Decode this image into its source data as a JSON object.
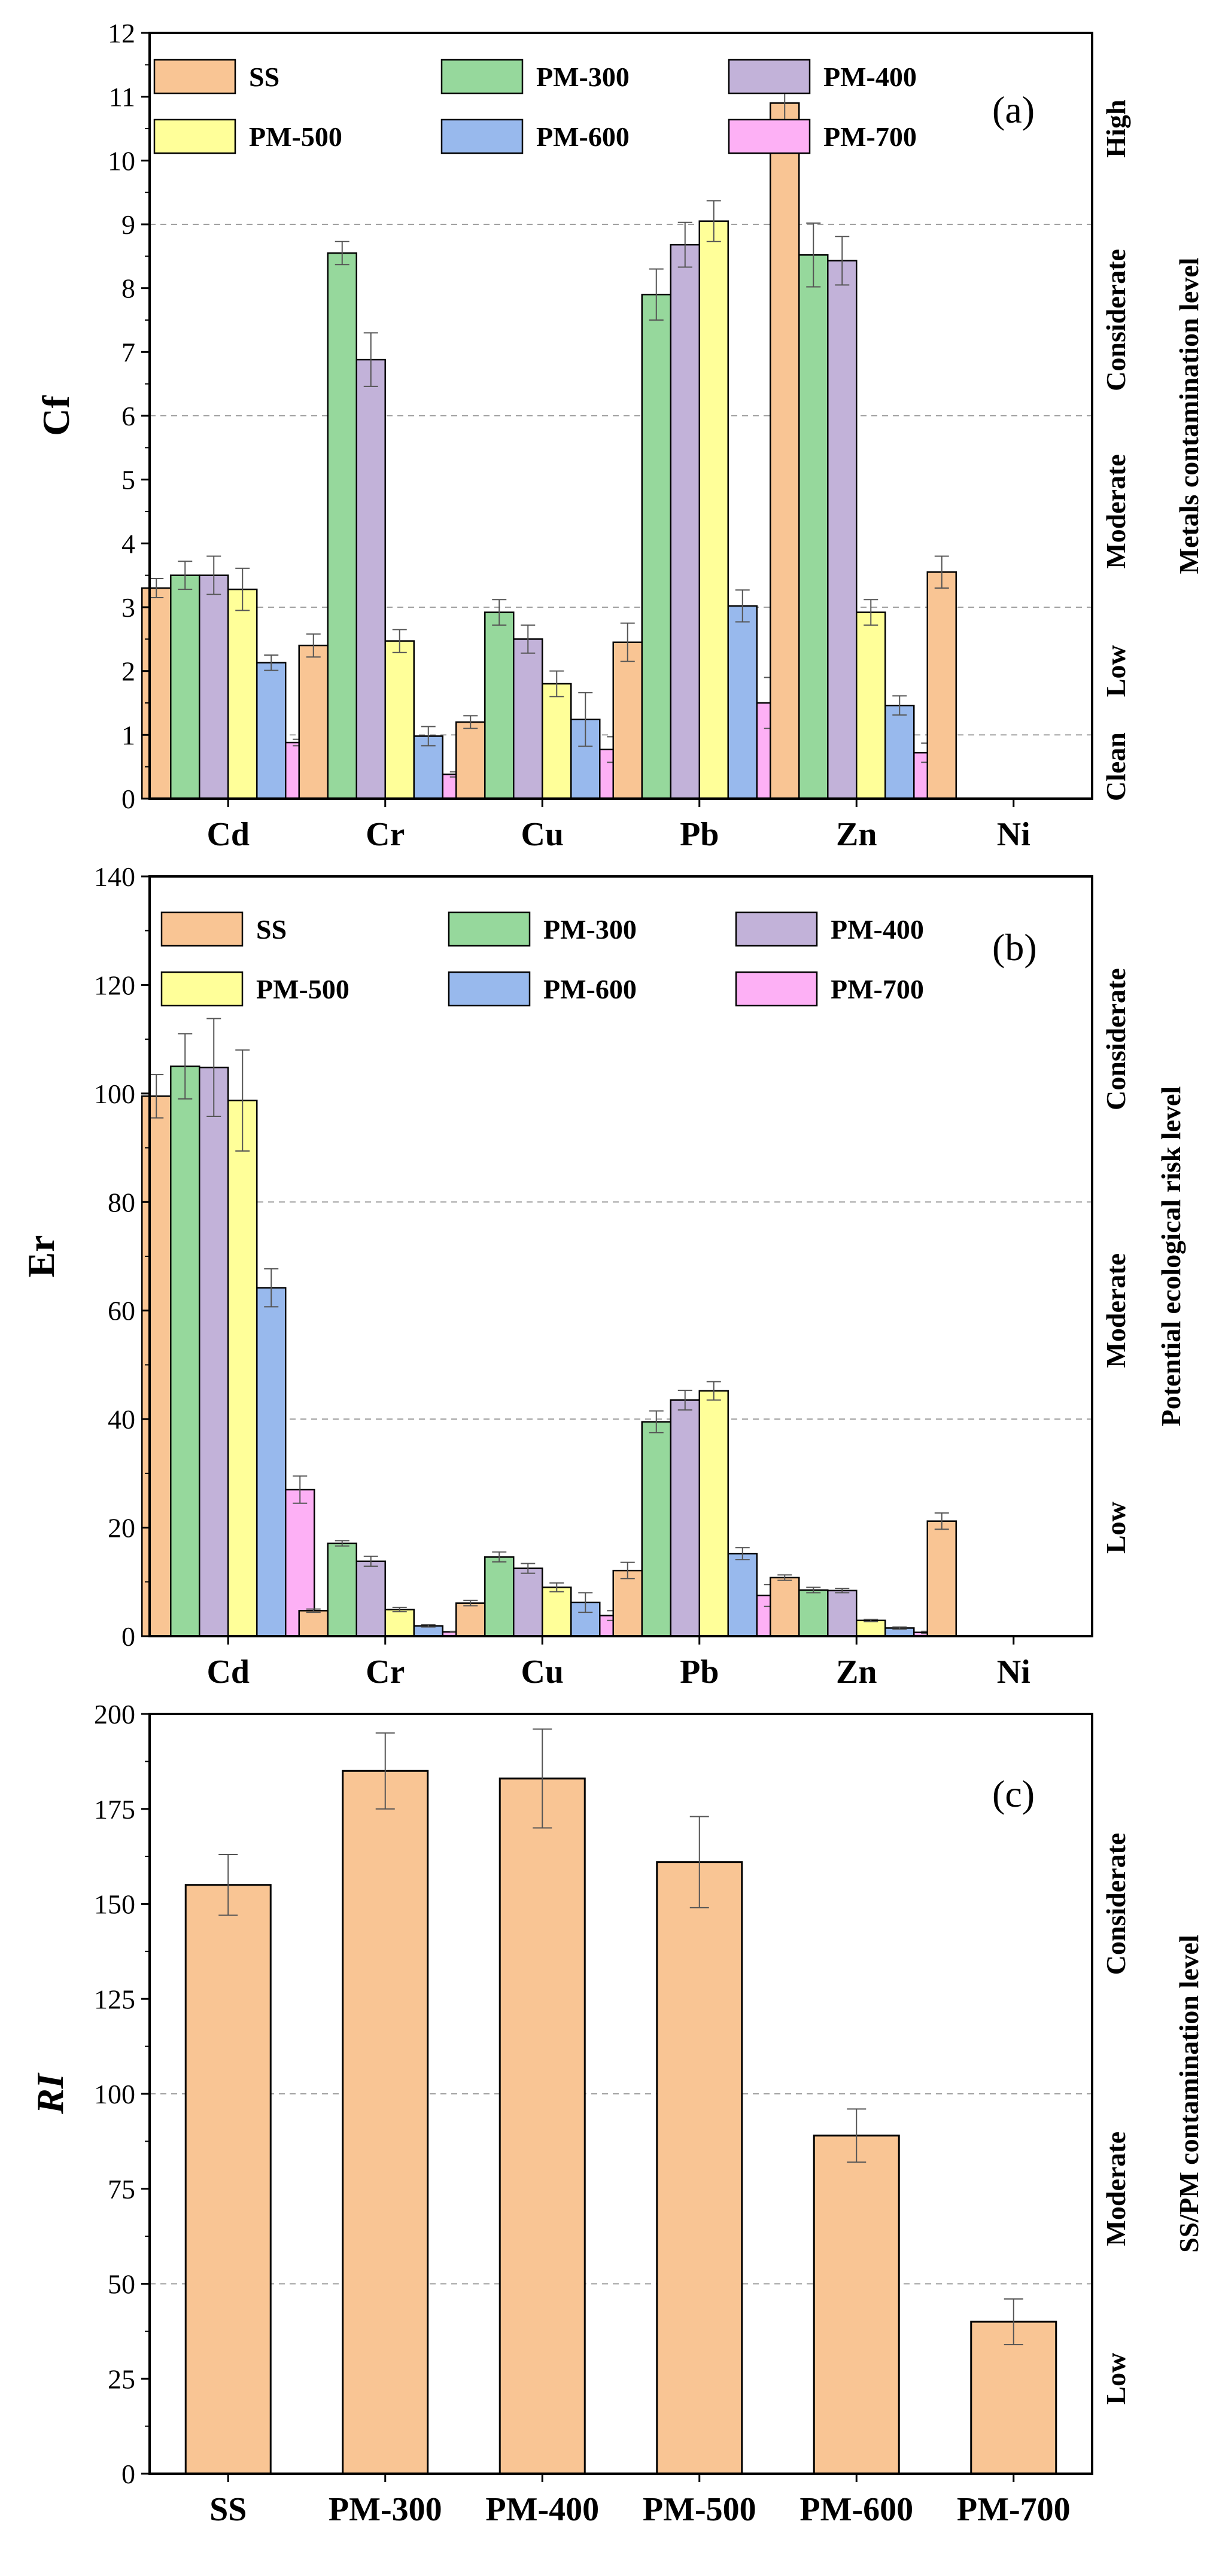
{
  "colors": {
    "SS": "#F9C594",
    "PM-300": "#96D89C",
    "PM-400": "#C2B2D9",
    "PM-500": "#FFFF99",
    "PM-600": "#98B9ED",
    "PM-700": "#FDB0F5",
    "grid": "#A0A0A0",
    "error": "#555555"
  },
  "chart_data": [
    {
      "id": "a",
      "type": "bar",
      "panel_label": "(a)",
      "ylabel": "Cf",
      "right_label": "Metals contamination level",
      "ylim": [
        0,
        12
      ],
      "yticks": [
        "0",
        "1",
        "2",
        "3",
        "4",
        "5",
        "6",
        "7",
        "8",
        "9",
        "10",
        "11",
        "12"
      ],
      "grid_lines": [
        1,
        3,
        6,
        9
      ],
      "categories": [
        "Cd",
        "Cr",
        "Cu",
        "Pb",
        "Zn",
        "Ni"
      ],
      "legend": [
        "SS",
        "PM-300",
        "PM-400",
        "PM-500",
        "PM-600",
        "PM-700"
      ],
      "levels": [
        {
          "label": "Clean",
          "from": 0,
          "to": 1
        },
        {
          "label": "Low",
          "from": 1,
          "to": 3
        },
        {
          "label": "Moderate",
          "from": 3,
          "to": 6
        },
        {
          "label": "Considerate",
          "from": 6,
          "to": 9
        },
        {
          "label": "High",
          "from": 9,
          "to": 12
        }
      ],
      "series": [
        {
          "name": "SS",
          "values": [
            3.3,
            2.4,
            1.2,
            2.45,
            10.9,
            3.55
          ],
          "errors": [
            0.15,
            0.18,
            0.1,
            0.3,
            0.3,
            0.25
          ]
        },
        {
          "name": "PM-300",
          "values": [
            3.5,
            8.55,
            2.92,
            7.9,
            8.52,
            0
          ],
          "errors": [
            0.22,
            0.18,
            0.2,
            0.4,
            0.5,
            0
          ]
        },
        {
          "name": "PM-400",
          "values": [
            3.5,
            6.88,
            2.5,
            8.68,
            8.43,
            0
          ],
          "errors": [
            0.3,
            0.42,
            0.22,
            0.35,
            0.38,
            0
          ]
        },
        {
          "name": "PM-500",
          "values": [
            3.28,
            2.47,
            1.8,
            9.05,
            2.92,
            0
          ],
          "errors": [
            0.33,
            0.18,
            0.2,
            0.32,
            0.2,
            0
          ]
        },
        {
          "name": "PM-600",
          "values": [
            2.13,
            0.98,
            1.24,
            3.02,
            1.46,
            0
          ],
          "errors": [
            0.12,
            0.15,
            0.42,
            0.25,
            0.15,
            0
          ]
        },
        {
          "name": "PM-700",
          "values": [
            0.88,
            0.38,
            0.77,
            1.5,
            0.72,
            0
          ],
          "errors": [
            0.05,
            0.04,
            0.2,
            0.4,
            0.15,
            0
          ]
        }
      ]
    },
    {
      "id": "b",
      "type": "bar",
      "panel_label": "(b)",
      "ylabel": "Er",
      "right_label": "Potential ecological risk level",
      "ylim": [
        0,
        140
      ],
      "yticks": [
        "0",
        "20",
        "40",
        "60",
        "80",
        "100",
        "120",
        "140"
      ],
      "grid_lines": [
        40,
        80
      ],
      "categories": [
        "Cd",
        "Cr",
        "Cu",
        "Pb",
        "Zn",
        "Ni"
      ],
      "legend": [
        "SS",
        "PM-300",
        "PM-400",
        "PM-500",
        "PM-600",
        "PM-700"
      ],
      "levels": [
        {
          "label": "Low",
          "from": 0,
          "to": 40
        },
        {
          "label": "Moderate",
          "from": 40,
          "to": 80
        },
        {
          "label": "Considerate",
          "from": 80,
          "to": 140
        }
      ],
      "series": [
        {
          "name": "SS",
          "values": [
            99.5,
            4.7,
            6.1,
            12.1,
            10.8,
            21.2
          ],
          "errors": [
            4,
            0.3,
            0.5,
            1.5,
            0.5,
            1.5
          ]
        },
        {
          "name": "PM-300",
          "values": [
            105,
            17.1,
            14.6,
            39.5,
            8.5,
            0
          ],
          "errors": [
            6,
            0.5,
            0.9,
            2,
            0.5,
            0
          ]
        },
        {
          "name": "PM-400",
          "values": [
            104.8,
            13.8,
            12.5,
            43.5,
            8.4,
            0
          ],
          "errors": [
            9,
            0.9,
            0.9,
            1.8,
            0.4,
            0
          ]
        },
        {
          "name": "PM-500",
          "values": [
            98.7,
            4.9,
            9,
            45.2,
            2.9,
            0
          ],
          "errors": [
            9.3,
            0.4,
            0.8,
            1.7,
            0.2,
            0
          ]
        },
        {
          "name": "PM-600",
          "values": [
            64.2,
            1.9,
            6.2,
            15.2,
            1.5,
            0
          ],
          "errors": [
            3.5,
            0.2,
            1.8,
            1.1,
            0.2,
            0
          ]
        },
        {
          "name": "PM-700",
          "values": [
            27,
            0.8,
            3.8,
            7.5,
            0.7,
            0
          ],
          "errors": [
            2.5,
            0.1,
            0.9,
            2,
            0.2,
            0
          ]
        }
      ]
    },
    {
      "id": "c",
      "type": "bar",
      "panel_label": "(c)",
      "ylabel": "RI",
      "right_label": "SS/PM contamination level",
      "ylim": [
        0,
        200
      ],
      "yticks": [
        "0",
        "25",
        "50",
        "75",
        "100",
        "125",
        "150",
        "175",
        "200"
      ],
      "grid_lines": [
        50,
        100
      ],
      "categories": [
        "SS",
        "PM-300",
        "PM-400",
        "PM-500",
        "PM-600",
        "PM-700"
      ],
      "levels": [
        {
          "label": "Low",
          "from": 0,
          "to": 50
        },
        {
          "label": "Moderate",
          "from": 50,
          "to": 100
        },
        {
          "label": "Considerate",
          "from": 100,
          "to": 200
        }
      ],
      "values": [
        155,
        185,
        183,
        161,
        89,
        40
      ],
      "errors": [
        8,
        10,
        13,
        12,
        7,
        6
      ]
    }
  ]
}
